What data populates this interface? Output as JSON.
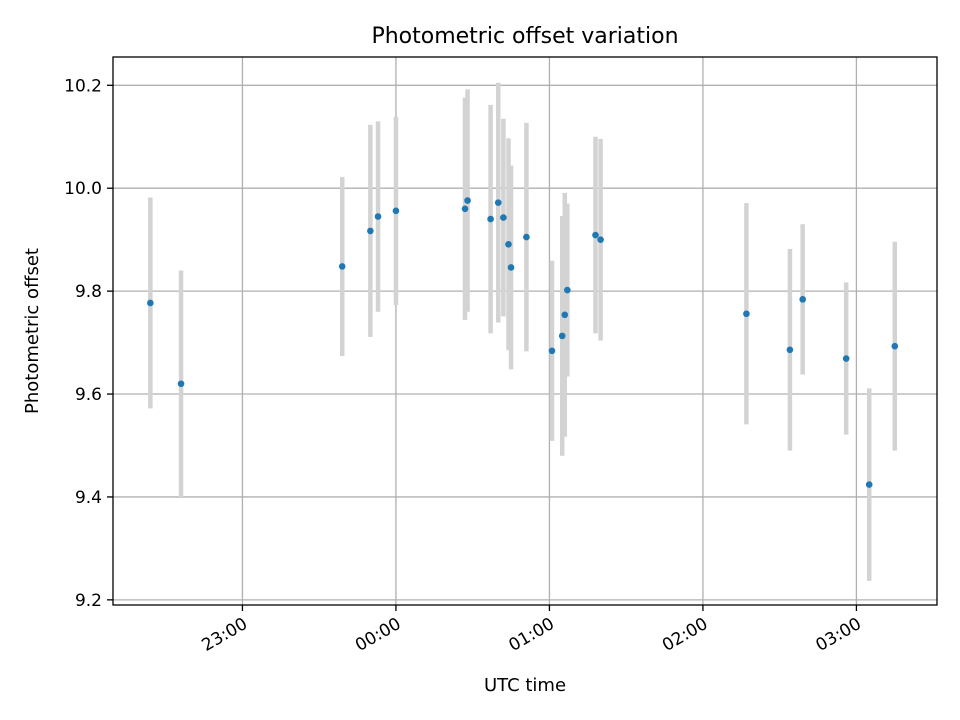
{
  "chart_data": {
    "type": "scatter",
    "title": "Photometric offset variation",
    "xlabel": "UTC time",
    "ylabel": "Photometric offset",
    "ylim": [
      9.19,
      10.255
    ],
    "xlim": [
      "22:09:24",
      "03:31:30"
    ],
    "grid": true,
    "xticks": [
      "23:00",
      "00:00",
      "01:00",
      "02:00",
      "03:00"
    ],
    "yticks": [
      "9.2",
      "9.4",
      "9.6",
      "9.8",
      "10.0",
      "10.2"
    ],
    "points": [
      {
        "x": "22:24",
        "y": 9.777,
        "err": 0.205
      },
      {
        "x": "22:36",
        "y": 9.62,
        "err": 0.22
      },
      {
        "x": "23:39",
        "y": 9.848,
        "err": 0.174
      },
      {
        "x": "23:50",
        "y": 9.917,
        "err": 0.206
      },
      {
        "x": "23:53",
        "y": 9.945,
        "err": 0.185
      },
      {
        "x": "00:00",
        "y": 9.956,
        "err": 0.183
      },
      {
        "x": "00:27",
        "y": 9.96,
        "err": 0.216
      },
      {
        "x": "00:28",
        "y": 9.976,
        "err": 0.216
      },
      {
        "x": "00:37",
        "y": 9.94,
        "err": 0.222
      },
      {
        "x": "00:40",
        "y": 9.972,
        "err": 0.233
      },
      {
        "x": "00:42",
        "y": 9.943,
        "err": 0.192
      },
      {
        "x": "00:44",
        "y": 9.891,
        "err": 0.206
      },
      {
        "x": "00:45",
        "y": 9.846,
        "err": 0.198
      },
      {
        "x": "00:51",
        "y": 9.905,
        "err": 0.222
      },
      {
        "x": "01:01",
        "y": 9.684,
        "err": 0.175
      },
      {
        "x": "01:05",
        "y": 9.713,
        "err": 0.233
      },
      {
        "x": "01:06",
        "y": 9.754,
        "err": 0.237
      },
      {
        "x": "01:07",
        "y": 9.802,
        "err": 0.168
      },
      {
        "x": "01:18",
        "y": 9.909,
        "err": 0.191
      },
      {
        "x": "01:20",
        "y": 9.9,
        "err": 0.196
      },
      {
        "x": "02:17",
        "y": 9.756,
        "err": 0.215
      },
      {
        "x": "02:34",
        "y": 9.686,
        "err": 0.196
      },
      {
        "x": "02:39",
        "y": 9.784,
        "err": 0.146
      },
      {
        "x": "02:56",
        "y": 9.669,
        "err": 0.148
      },
      {
        "x": "03:05",
        "y": 9.424,
        "err": 0.187
      },
      {
        "x": "03:15",
        "y": 9.693,
        "err": 0.203
      }
    ]
  }
}
